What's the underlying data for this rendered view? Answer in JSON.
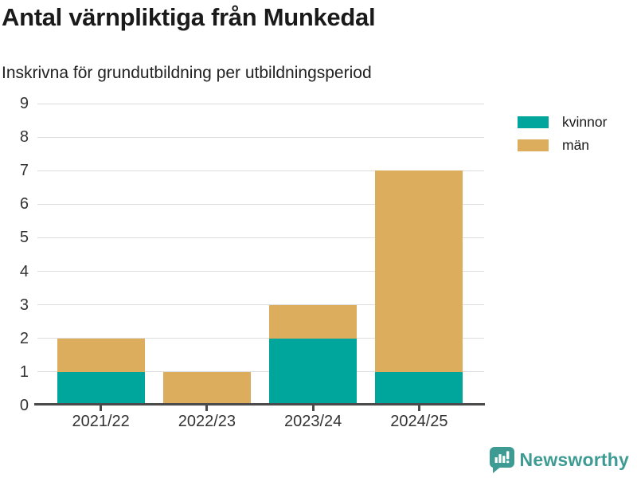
{
  "header": {
    "title": "Antal värnpliktiga från Munkedal",
    "subtitle": "Inskrivna för grundutbildning per utbildningsperiod"
  },
  "chart_data": {
    "type": "bar",
    "stacked": true,
    "title": "Antal värnpliktiga från Munkedal",
    "subtitle": "Inskrivna för grundutbildning per utbildningsperiod",
    "categories": [
      "2021/22",
      "2022/23",
      "2023/24",
      "2024/25"
    ],
    "series": [
      {
        "name": "kvinnor",
        "color": "#00a69c",
        "values": [
          1,
          0,
          2,
          1
        ]
      },
      {
        "name": "män",
        "color": "#dbad5c",
        "values": [
          1,
          1,
          1,
          6
        ]
      }
    ],
    "totals": [
      2,
      1,
      3,
      7
    ],
    "xlabel": "",
    "ylabel": "",
    "ylim": [
      0,
      9
    ],
    "yticks": [
      0,
      1,
      2,
      3,
      4,
      5,
      6,
      7,
      8,
      9
    ],
    "grid": true,
    "legend_position": "top-right"
  },
  "colors": {
    "kvinnor": "#00a69c",
    "man": "#dbad5c",
    "gridline": "#dddddd",
    "axis": "#4a4a4a",
    "title_text": "#1a1a1a",
    "tick_text": "#333333",
    "brand_teal": "#3d9b94"
  },
  "footer": {
    "brand": "Newsworthy",
    "logo_icon": "bar-chart-speech-bubble-icon"
  }
}
